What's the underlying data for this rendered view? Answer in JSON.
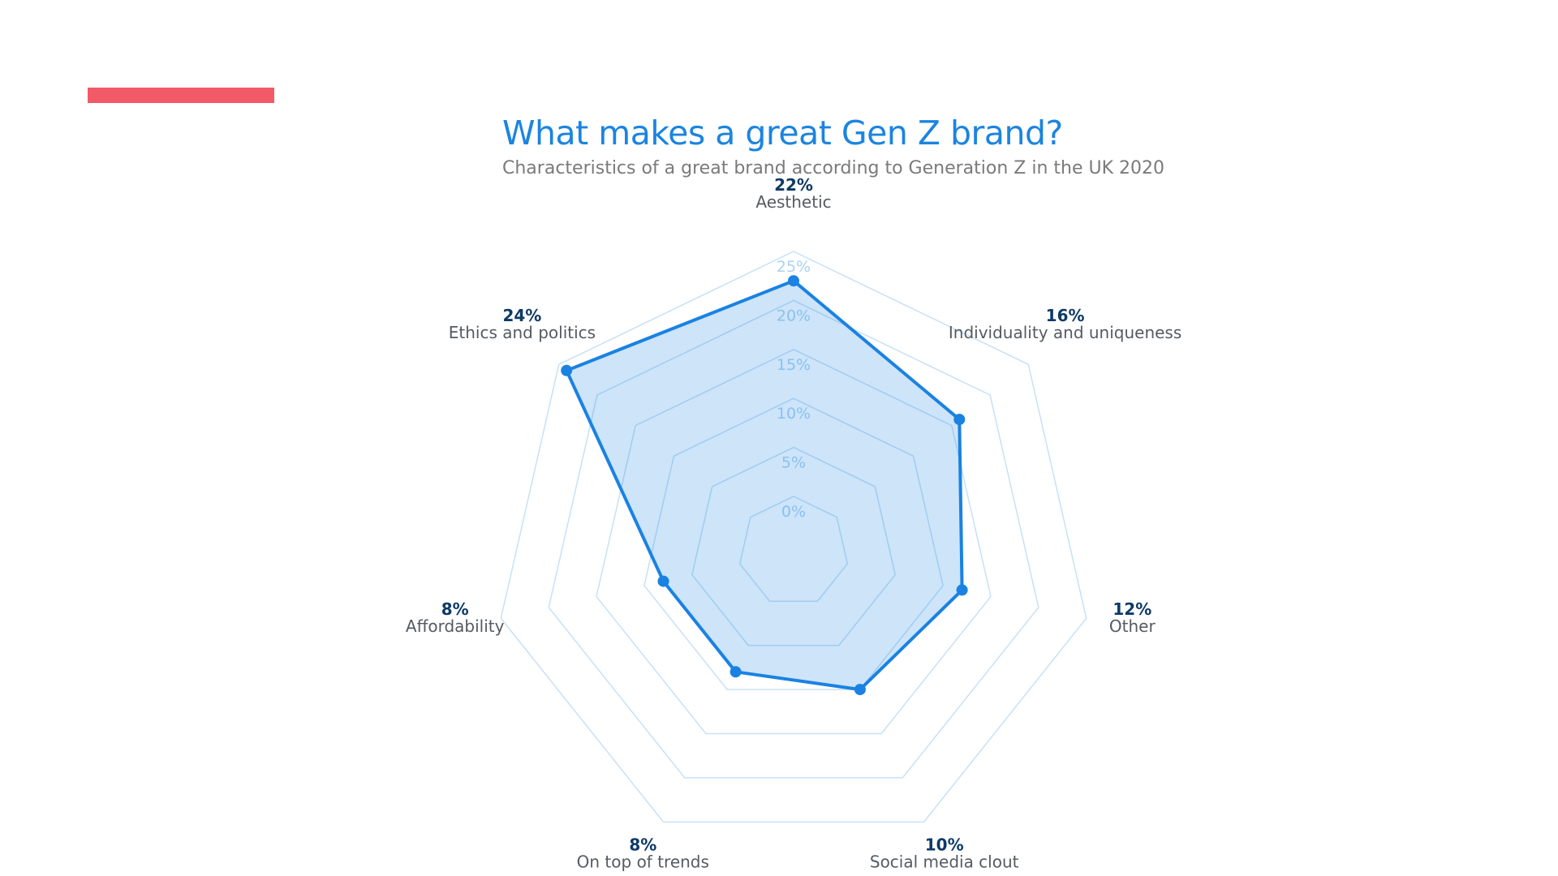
{
  "header": {
    "title": "What makes a great Gen Z brand?",
    "subtitle": "Characteristics of a great brand according to Generation Z in the UK 2020"
  },
  "colors": {
    "accent_bar": "#f15a66",
    "title": "#1b84e0",
    "series": "#1a82e2",
    "grid": "#c7e1f7"
  },
  "chart_data": {
    "type": "radar",
    "title": "What makes a great Gen Z brand?",
    "subtitle": "Characteristics of a great brand according to Generation Z in the UK 2020",
    "categories": [
      "Aesthetic",
      "Individuality and uniqueness",
      "Other",
      "Social media clout",
      "On top of trends",
      "Affordability",
      "Ethics and politics"
    ],
    "value_labels": [
      "22%",
      "16%",
      "12%",
      "10%",
      "8%",
      "8%",
      "24%"
    ],
    "values": [
      22,
      16,
      12,
      10,
      8,
      8,
      24
    ],
    "radial_ticks": [
      "0%",
      "5%",
      "10%",
      "15%",
      "20%",
      "25%"
    ],
    "radial_range": [
      0,
      25
    ],
    "grid": true,
    "legend": "none"
  }
}
